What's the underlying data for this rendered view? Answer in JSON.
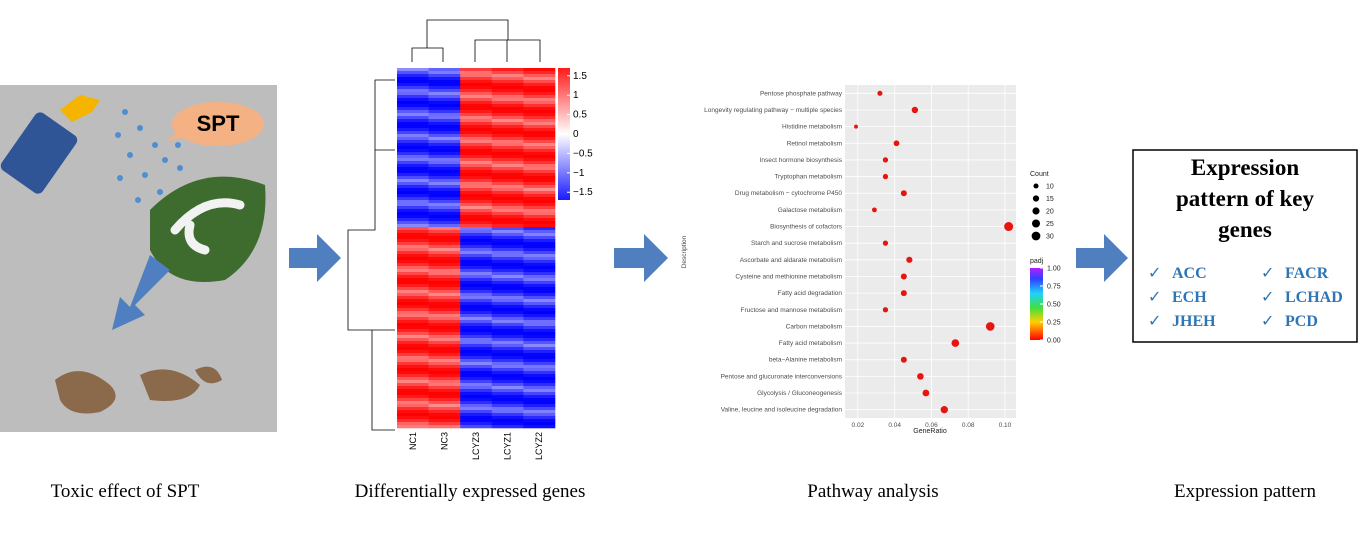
{
  "toxic": {
    "bubble": "SPT",
    "caption": "Toxic effect of SPT"
  },
  "heatmap": {
    "columns": [
      "NC1",
      "NC3",
      "LCYZ3",
      "LCYZ1",
      "LCYZ2"
    ],
    "ticks": [
      1.5,
      1,
      0.5,
      0,
      {
        "value": -0.5,
        "label": "−0.5"
      },
      {
        "value": -1,
        "label": "−1"
      },
      {
        "value": -1.5,
        "label": "−1.5"
      }
    ],
    "lim": [
      -1.7,
      1.7
    ],
    "caption": "Differentially expressed genes"
  },
  "chart_data": {
    "type": "scatter",
    "ylabel": "Description",
    "xlabel": "GeneRatio",
    "categories": [
      "Pentose phosphate pathway",
      "Longevity regulating pathway − multiple species",
      "Histidine metabolism",
      "Retinol metabolism",
      "Insect hormone biosynthesis",
      "Tryptophan metabolism",
      "Drug metabolism − cytochrome P450",
      "Galactose metabolism",
      "Biosynthesis of cofactors",
      "Starch and sucrose metabolism",
      "Ascorbate and aldarate metabolism",
      "Cysteine and methionine metabolism",
      "Fatty acid degradation",
      "Fructose and mannose metabolism",
      "Carbon metabolism",
      "Fatty acid metabolism",
      "beta−Alanine metabolism",
      "Pentose and glucuronate interconversions",
      "Glycolysis / Gluconeogenesis",
      "Valine, leucine and isoleucine degradation"
    ],
    "values": [
      0.032,
      0.051,
      0.019,
      0.041,
      0.035,
      0.035,
      0.045,
      0.029,
      0.102,
      0.035,
      0.048,
      0.045,
      0.045,
      0.035,
      0.092,
      0.073,
      0.045,
      0.054,
      0.057,
      0.067
    ],
    "counts": [
      10,
      16,
      6,
      13,
      11,
      11,
      14,
      9,
      32,
      11,
      15,
      14,
      14,
      11,
      29,
      23,
      14,
      17,
      18,
      21
    ],
    "color": "#e8140e",
    "xlim": [
      0.013,
      0.106
    ],
    "xticks": [
      0.02,
      0.04,
      0.06,
      0.08,
      {
        "value": 0.1,
        "label": "0.10"
      }
    ],
    "grid": true,
    "size_title": "Count",
    "size_ticks": [
      10,
      15,
      20,
      25,
      30
    ],
    "color_title": "padj",
    "color_ticks": [
      {
        "value": 1,
        "label": "1.00"
      },
      0.75,
      {
        "value": 0.5,
        "label": "0.50"
      },
      0.25,
      {
        "value": 0,
        "label": "0.00"
      }
    ],
    "color_lim": [
      0,
      1
    ],
    "caption": "Pathway analysis"
  },
  "expression": {
    "title": [
      "Expression",
      "pattern of key",
      "genes"
    ],
    "genes": [
      "ACC",
      "FACR",
      "ECH",
      "LCHAD",
      "JHEH",
      "PCD"
    ],
    "caption": "Expression pattern"
  }
}
